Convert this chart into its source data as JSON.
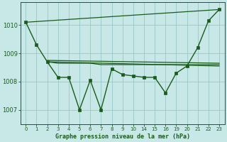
{
  "bg_color": "#c8e8e8",
  "line_color": "#1a5c1a",
  "grid_color": "#98c8c8",
  "xlabel": "Graphe pression niveau de la mer (hPa)",
  "ylim": [
    1006.5,
    1010.8
  ],
  "yticks": [
    1007,
    1008,
    1009,
    1010
  ],
  "ytick_labels": [
    "1007",
    "1008",
    "1009",
    "1010"
  ],
  "x_indices": [
    0,
    1,
    2,
    3,
    4,
    5,
    6,
    7,
    8,
    9,
    10,
    11,
    12,
    13,
    14,
    15,
    16,
    17,
    18
  ],
  "x_labels": [
    "0",
    "1",
    "2",
    "3",
    "4",
    "5",
    "6",
    "7",
    "8",
    "9",
    "10",
    "14",
    "15",
    "16",
    "19",
    "20",
    "21",
    "22",
    "23"
  ],
  "series": [
    {
      "xi": [
        0,
        1,
        2,
        3,
        4,
        5,
        6,
        7,
        8,
        9,
        10,
        11,
        12,
        13,
        14,
        15,
        16,
        17,
        18
      ],
      "y": [
        1010.1,
        1009.3,
        1008.7,
        1008.15,
        1008.15,
        1007.0,
        1008.05,
        1007.0,
        1008.45,
        1008.25,
        1008.2,
        1008.15,
        1008.15,
        1007.6,
        1008.3,
        1008.55,
        1009.2,
        1010.15,
        1010.55
      ],
      "marker": true,
      "linewidth": 1.0
    },
    {
      "xi": [
        2,
        3,
        4,
        5,
        6,
        7,
        8,
        9,
        10,
        11,
        12,
        13,
        14,
        15,
        16,
        17,
        18
      ],
      "y": [
        1008.7,
        1008.65,
        1008.65,
        1008.65,
        1008.65,
        1008.6,
        1008.6,
        1008.6,
        1008.6,
        1008.6,
        1008.6,
        1008.6,
        1008.6,
        1008.6,
        1008.6,
        1008.6,
        1008.6
      ],
      "marker": false,
      "linewidth": 0.9
    },
    {
      "xi": [
        0,
        18
      ],
      "y": [
        1010.1,
        1010.55
      ],
      "marker": false,
      "linewidth": 0.9
    },
    {
      "xi": [
        2,
        18
      ],
      "y": [
        1008.7,
        1008.55
      ],
      "marker": false,
      "linewidth": 0.9
    },
    {
      "xi": [
        2,
        18
      ],
      "y": [
        1008.75,
        1008.65
      ],
      "marker": false,
      "linewidth": 0.9
    }
  ]
}
